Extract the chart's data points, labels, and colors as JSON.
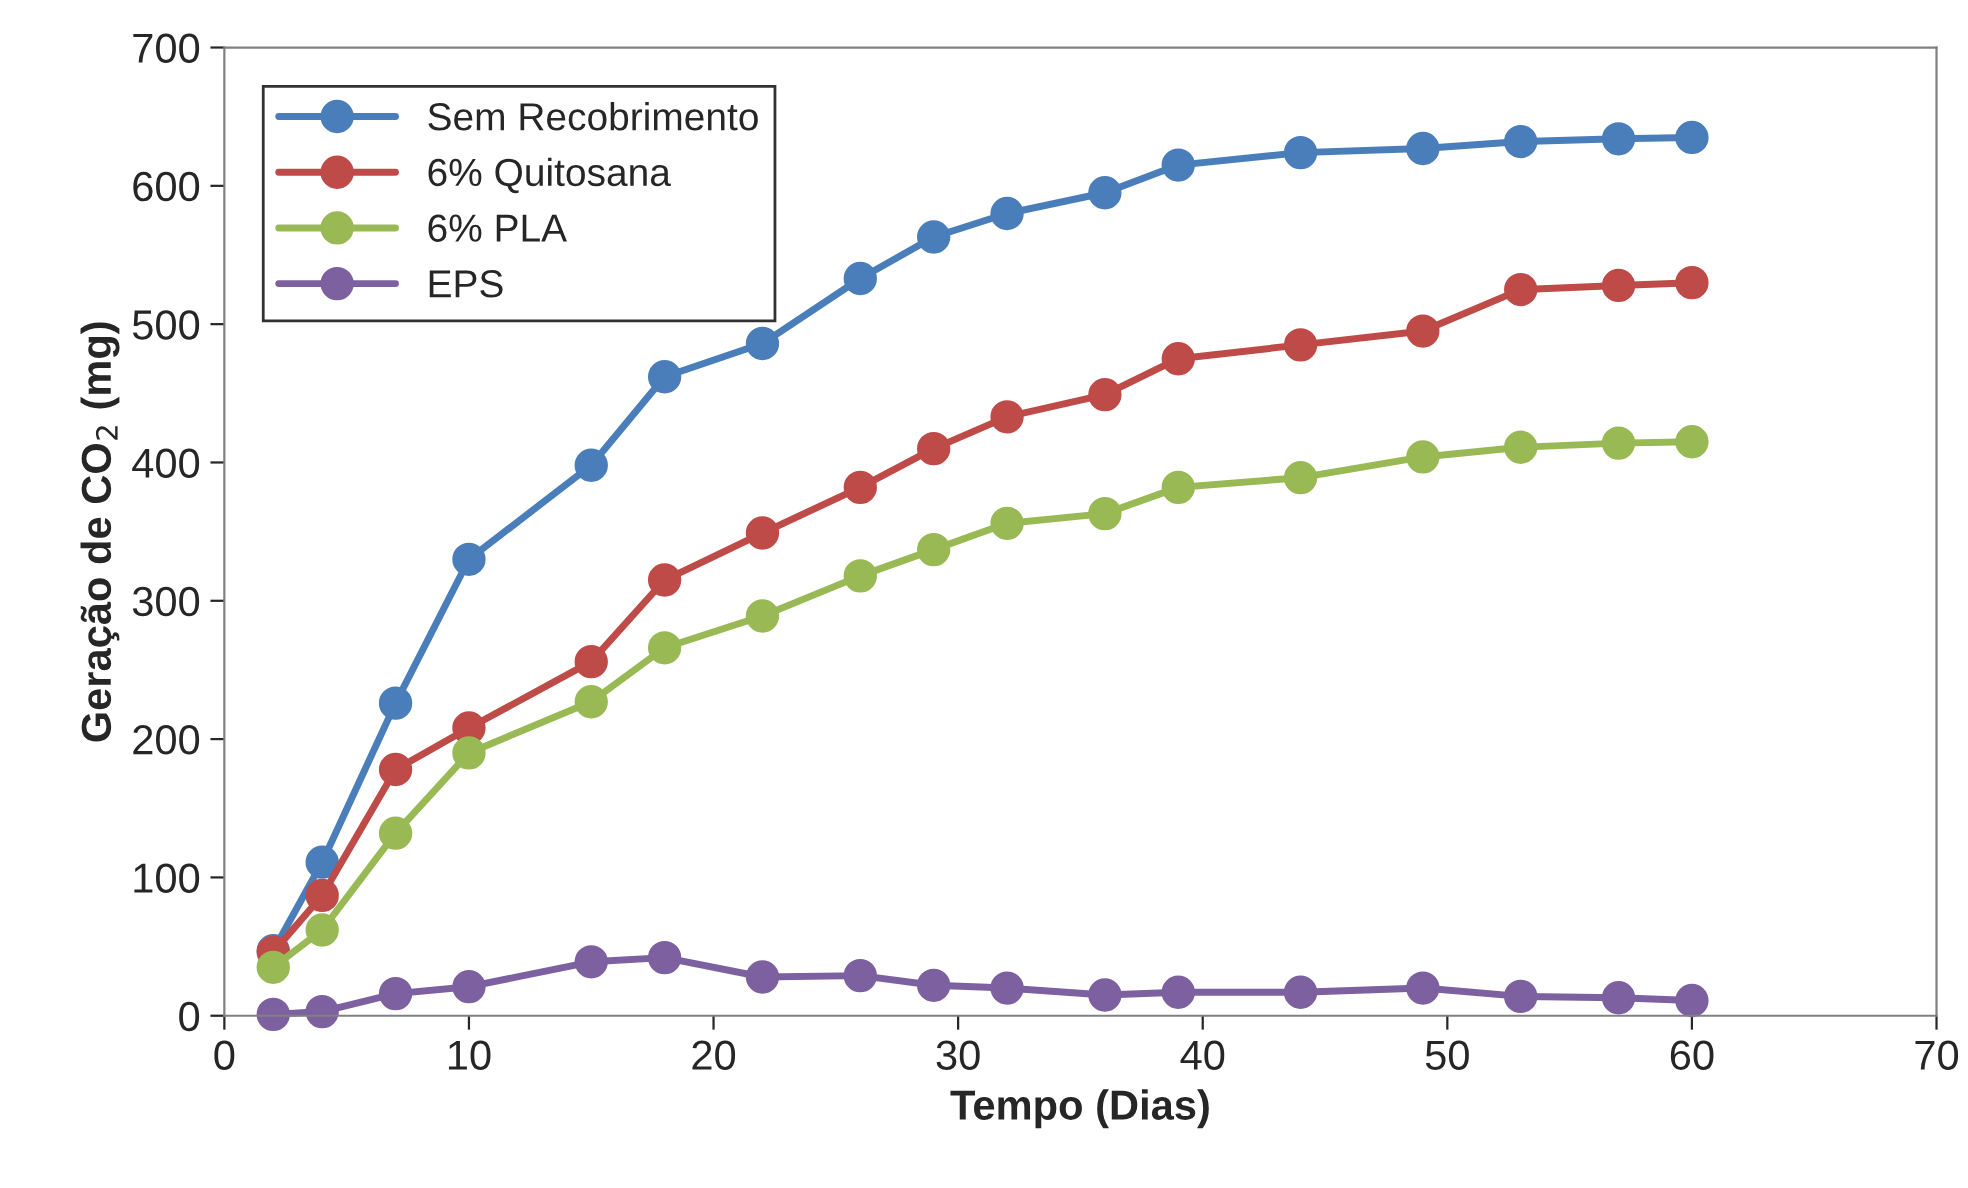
{
  "chart_data": {
    "type": "line",
    "xlabel": "Tempo (Dias)",
    "ylabel": "Geração de CO$_{2}$ (mg)",
    "x": [
      2,
      4,
      7,
      10,
      15,
      18,
      22,
      26,
      29,
      32,
      36,
      39,
      44,
      49,
      53,
      57,
      60
    ],
    "series": [
      {
        "name": "Sem Recobrimento",
        "color": "#4a7ebb",
        "values": [
          47,
          111,
          226,
          330,
          398,
          462,
          486,
          533,
          563,
          580,
          595,
          615,
          624,
          627,
          632,
          634,
          635
        ]
      },
      {
        "name": "6% Quitosana",
        "color": "#be4b48",
        "values": [
          46,
          87,
          178,
          208,
          256,
          315,
          349,
          382,
          410,
          433,
          449,
          475,
          485,
          495,
          525,
          528,
          530
        ]
      },
      {
        "name": "6% PLA",
        "color": "#98b954",
        "values": [
          35,
          62,
          132,
          190,
          227,
          266,
          289,
          318,
          337,
          356,
          363,
          382,
          389,
          404,
          411,
          414,
          415
        ]
      },
      {
        "name": "EPS",
        "color": "#7d60a0",
        "values": [
          1,
          3,
          16,
          21,
          39,
          42,
          28,
          29,
          22,
          20,
          15,
          17,
          17,
          20,
          14,
          13,
          11
        ]
      }
    ],
    "xlim": [
      0,
      70
    ],
    "xticks": [
      0,
      10,
      20,
      30,
      40,
      50,
      60,
      70
    ],
    "ylim": [
      0,
      700
    ],
    "yticks": [
      0,
      100,
      200,
      300,
      400,
      500,
      600,
      700
    ],
    "grid": false,
    "legend": "top left",
    "marker": "circle",
    "line_style": "solid"
  }
}
